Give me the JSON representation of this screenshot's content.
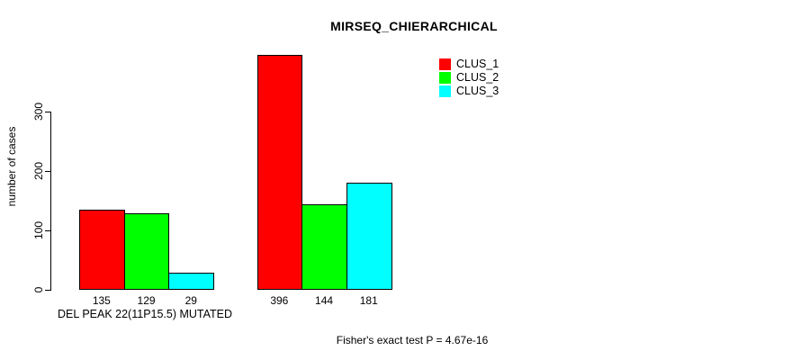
{
  "chart_data": {
    "type": "bar",
    "title": "MIRSEQ_CHIERARCHICAL",
    "ylabel": "number of cases",
    "xlabel": "DEL PEAK 22(11P15.5) MUTATED",
    "footnote": "Fisher's exact test P = 4.67e-16",
    "series": [
      {
        "name": "CLUS_1",
        "color": "#ff0000"
      },
      {
        "name": "CLUS_2",
        "color": "#00ff00"
      },
      {
        "name": "CLUS_3",
        "color": "#00ffff"
      }
    ],
    "groups": [
      [
        135,
        129,
        29
      ],
      [
        396,
        144,
        181
      ]
    ],
    "yticks": [
      0,
      100,
      200,
      300
    ],
    "ylim": [
      0,
      300
    ],
    "grid": false,
    "bar_border_color": "#000000",
    "legend_position": "top-right"
  }
}
